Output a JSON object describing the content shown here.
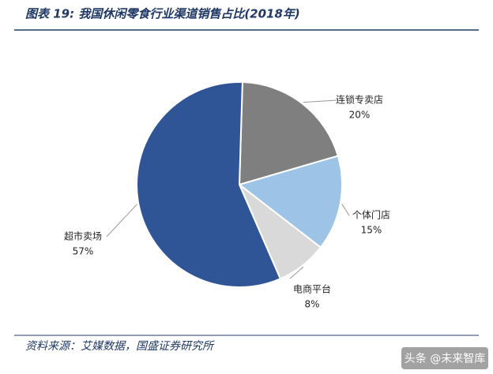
{
  "chart_data": {
    "type": "pie",
    "title": "图表 19:   我国休闲零食行业渠道销售占比(2018年)",
    "categories": [
      "连锁专卖店",
      "个体门店",
      "电商平台",
      "超市卖场"
    ],
    "values": [
      20,
      15,
      8,
      57
    ],
    "value_labels": [
      "20%",
      "15%",
      "8%",
      "57%"
    ],
    "colors": [
      "#7f7f7f",
      "#9dc3e6",
      "#d9d9d9",
      "#2f5597"
    ],
    "source": "资料来源：艾媒数据，国盛证券研究所"
  },
  "watermark": "头条 @未来智库"
}
